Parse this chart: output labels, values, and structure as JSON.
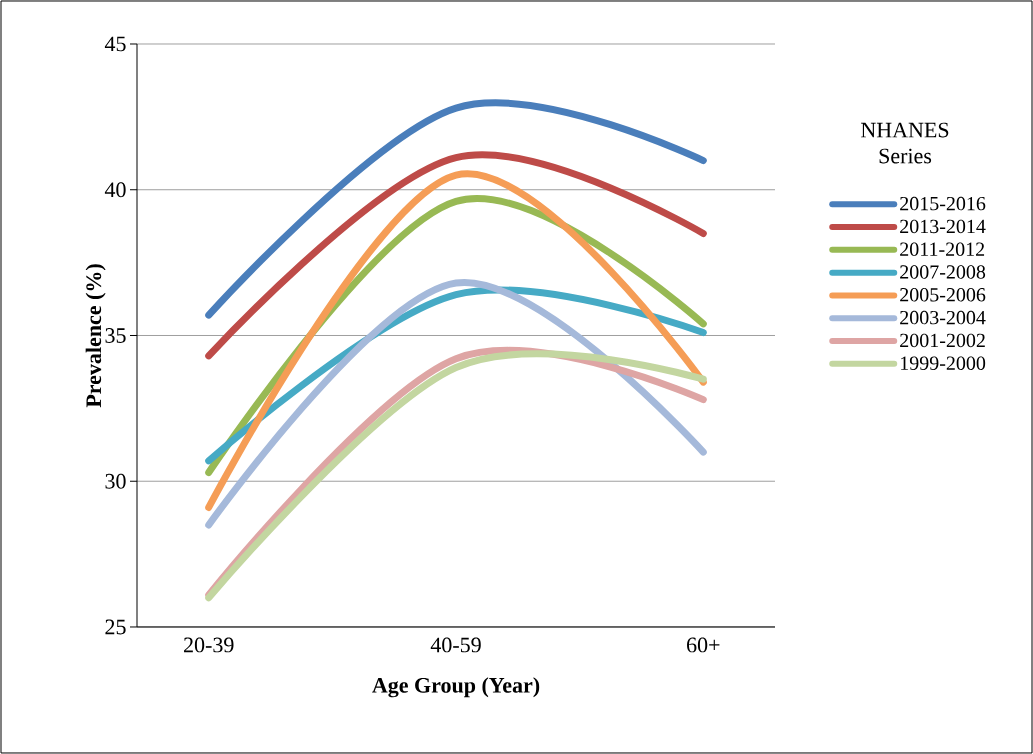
{
  "chart_data": {
    "type": "line",
    "xlabel": "Age Group (Year)",
    "ylabel": "Prevalence (%)",
    "legend_title": "NHANES Series",
    "categories": [
      "20-39",
      "40-59",
      "60+"
    ],
    "ylim": [
      25,
      45
    ],
    "yticks": [
      25,
      30,
      35,
      40,
      45
    ],
    "grid": "y",
    "legend": "right",
    "marker": "none",
    "line_style": "solid",
    "series": [
      {
        "name": "2015-2016",
        "color": "#4a7ebb",
        "values": [
          35.7,
          42.8,
          41.0
        ]
      },
      {
        "name": "2013-2014",
        "color": "#be4b48",
        "values": [
          34.3,
          41.1,
          38.5
        ]
      },
      {
        "name": "2011-2012",
        "color": "#98b954",
        "values": [
          30.3,
          39.6,
          35.4
        ]
      },
      {
        "name": "2007-2008",
        "color": "#46aac5",
        "values": [
          30.7,
          36.4,
          35.1
        ]
      },
      {
        "name": "2005-2006",
        "color": "#f59d56",
        "values": [
          29.1,
          40.5,
          33.4
        ]
      },
      {
        "name": "2003-2004",
        "color": "#a5b9da",
        "values": [
          28.5,
          36.8,
          31.0
        ]
      },
      {
        "name": "2001-2002",
        "color": "#dea5a4",
        "values": [
          26.1,
          34.2,
          32.8
        ]
      },
      {
        "name": "1999-2000",
        "color": "#c3d6a0",
        "values": [
          26.0,
          33.9,
          33.5
        ]
      }
    ]
  }
}
